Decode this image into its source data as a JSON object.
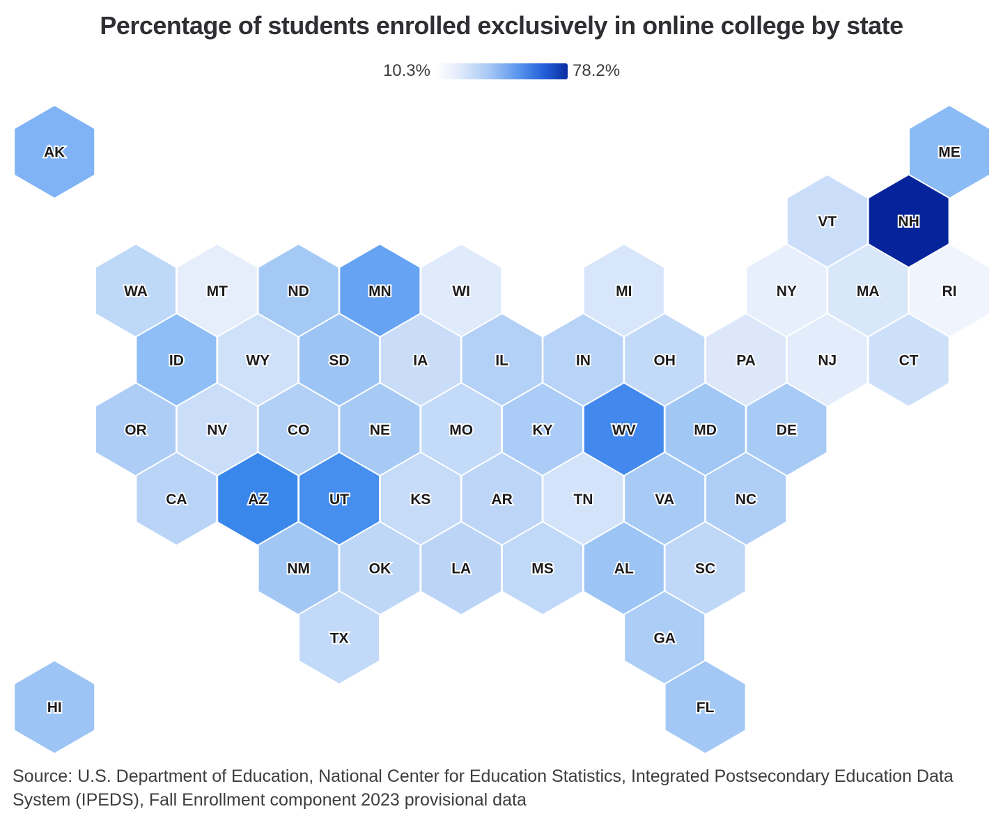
{
  "title": "Percentage of students enrolled exclusively in online college by state",
  "legend": {
    "min_label": "10.3%",
    "max_label": "78.2%",
    "gradient_start_color": "#ffffff",
    "gradient_end_color": "#0a2da0"
  },
  "source": "Source: U.S. Department of Education, National Center for Education Statistics, Integrated Postsecondary Education Data System (IPEDS), Fall Enrollment component 2023 provisional data",
  "chart_data": {
    "type": "heatmap",
    "subtype": "us-states-hexbin-cartogram",
    "title": "Percentage of students enrolled exclusively in online college by state",
    "value_range": {
      "min": 10.3,
      "max": 78.2,
      "unit": "%"
    },
    "legend_position": "top-center",
    "encoding": "fill color: white (10.3%) to dark navy (78.2%)",
    "min_state_color": "#ffffff",
    "max_state_color": "#0a2da0",
    "states": [
      {
        "abbr": "AK",
        "row": 0,
        "col": -1,
        "color": "#7fb3f5"
      },
      {
        "abbr": "ME",
        "row": 0,
        "col": 10,
        "color": "#8abbf5"
      },
      {
        "abbr": "VT",
        "row": 1,
        "col": 8,
        "color": "#cbdef9"
      },
      {
        "abbr": "NH",
        "row": 1,
        "col": 9,
        "color": "#05249c"
      },
      {
        "abbr": "WA",
        "row": 2,
        "col": 0,
        "color": "#bed8f8"
      },
      {
        "abbr": "MT",
        "row": 2,
        "col": 1,
        "color": "#e6eefc"
      },
      {
        "abbr": "ND",
        "row": 2,
        "col": 2,
        "color": "#a5c9f5"
      },
      {
        "abbr": "MN",
        "row": 2,
        "col": 3,
        "color": "#66a3f2"
      },
      {
        "abbr": "WI",
        "row": 2,
        "col": 4,
        "color": "#dfeafb"
      },
      {
        "abbr": "MI",
        "row": 2,
        "col": 6,
        "color": "#d7e6fa"
      },
      {
        "abbr": "NY",
        "row": 2,
        "col": 8,
        "color": "#e8effc"
      },
      {
        "abbr": "MA",
        "row": 2,
        "col": 9,
        "color": "#d9e7fa"
      },
      {
        "abbr": "RI",
        "row": 2,
        "col": 10,
        "color": "#eff4fd"
      },
      {
        "abbr": "ID",
        "row": 3,
        "col": 0,
        "color": "#8ebef5"
      },
      {
        "abbr": "WY",
        "row": 3,
        "col": 1,
        "color": "#cfe1f9"
      },
      {
        "abbr": "SD",
        "row": 3,
        "col": 2,
        "color": "#9cc4f4"
      },
      {
        "abbr": "IA",
        "row": 3,
        "col": 3,
        "color": "#c9ddf8"
      },
      {
        "abbr": "IL",
        "row": 3,
        "col": 4,
        "color": "#b3d0f6"
      },
      {
        "abbr": "IN",
        "row": 3,
        "col": 5,
        "color": "#b7d3f7"
      },
      {
        "abbr": "OH",
        "row": 3,
        "col": 6,
        "color": "#c2d9f8"
      },
      {
        "abbr": "PA",
        "row": 3,
        "col": 7,
        "color": "#dce8fa"
      },
      {
        "abbr": "NJ",
        "row": 3,
        "col": 8,
        "color": "#e3ecfb"
      },
      {
        "abbr": "CT",
        "row": 3,
        "col": 9,
        "color": "#cde0f9"
      },
      {
        "abbr": "OR",
        "row": 4,
        "col": 0,
        "color": "#adcdf6"
      },
      {
        "abbr": "NV",
        "row": 4,
        "col": 1,
        "color": "#cbdef9"
      },
      {
        "abbr": "CO",
        "row": 4,
        "col": 2,
        "color": "#b2d0f6"
      },
      {
        "abbr": "NE",
        "row": 4,
        "col": 3,
        "color": "#a7caf5"
      },
      {
        "abbr": "MO",
        "row": 4,
        "col": 4,
        "color": "#c3daf8"
      },
      {
        "abbr": "KY",
        "row": 4,
        "col": 5,
        "color": "#abccf6"
      },
      {
        "abbr": "WV",
        "row": 4,
        "col": 6,
        "color": "#4389ed"
      },
      {
        "abbr": "MD",
        "row": 4,
        "col": 7,
        "color": "#a1c7f5"
      },
      {
        "abbr": "DE",
        "row": 4,
        "col": 8,
        "color": "#a8cbf5"
      },
      {
        "abbr": "CA",
        "row": 5,
        "col": 0,
        "color": "#b9d4f7"
      },
      {
        "abbr": "AZ",
        "row": 5,
        "col": 1,
        "color": "#3a87ec"
      },
      {
        "abbr": "UT",
        "row": 5,
        "col": 2,
        "color": "#478fee"
      },
      {
        "abbr": "KS",
        "row": 5,
        "col": 3,
        "color": "#c5dbf8"
      },
      {
        "abbr": "AR",
        "row": 5,
        "col": 4,
        "color": "#bdd6f7"
      },
      {
        "abbr": "TN",
        "row": 5,
        "col": 5,
        "color": "#d3e3f9"
      },
      {
        "abbr": "VA",
        "row": 5,
        "col": 6,
        "color": "#a8cbf5"
      },
      {
        "abbr": "NC",
        "row": 5,
        "col": 7,
        "color": "#afcef6"
      },
      {
        "abbr": "NM",
        "row": 6,
        "col": 2,
        "color": "#a2c7f5"
      },
      {
        "abbr": "OK",
        "row": 6,
        "col": 3,
        "color": "#bfd7f7"
      },
      {
        "abbr": "LA",
        "row": 6,
        "col": 4,
        "color": "#bcd5f7"
      },
      {
        "abbr": "MS",
        "row": 6,
        "col": 5,
        "color": "#c1d9f8"
      },
      {
        "abbr": "AL",
        "row": 6,
        "col": 6,
        "color": "#9cc4f4"
      },
      {
        "abbr": "SC",
        "row": 6,
        "col": 7,
        "color": "#c0d8f8"
      },
      {
        "abbr": "TX",
        "row": 7,
        "col": 2,
        "color": "#c2d9f8"
      },
      {
        "abbr": "GA",
        "row": 7,
        "col": 6,
        "color": "#abcdf6"
      },
      {
        "abbr": "HI",
        "row": 8,
        "col": -1,
        "color": "#9cc4f4"
      },
      {
        "abbr": "FL",
        "row": 8,
        "col": 7,
        "color": "#a3c8f5"
      }
    ]
  }
}
